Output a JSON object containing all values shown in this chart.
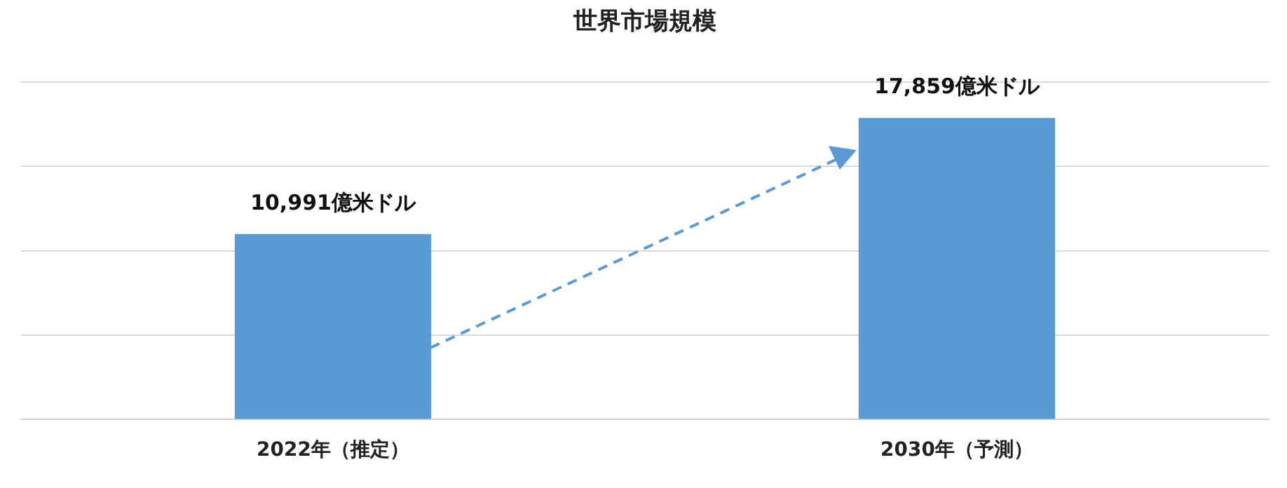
{
  "chart_data": {
    "type": "bar",
    "title": "世界市場規模",
    "categories": [
      "2022年（推定）",
      "2030年（予測）"
    ],
    "values": [
      10991,
      17859
    ],
    "color": "#5b9bd5",
    "value_labels": [
      "10,991億米ドル",
      "17,859億米ドル"
    ],
    "ylim": [
      0,
      20000
    ],
    "yticks": [
      {
        "value": 0,
        "label": null
      },
      {
        "value": 5000,
        "label": null
      },
      {
        "value": 10000,
        "label": null
      },
      {
        "value": 15000,
        "label": null
      },
      {
        "value": 20000,
        "label": null
      }
    ],
    "grid": "y",
    "tick_labels": "x",
    "legend": false
  }
}
